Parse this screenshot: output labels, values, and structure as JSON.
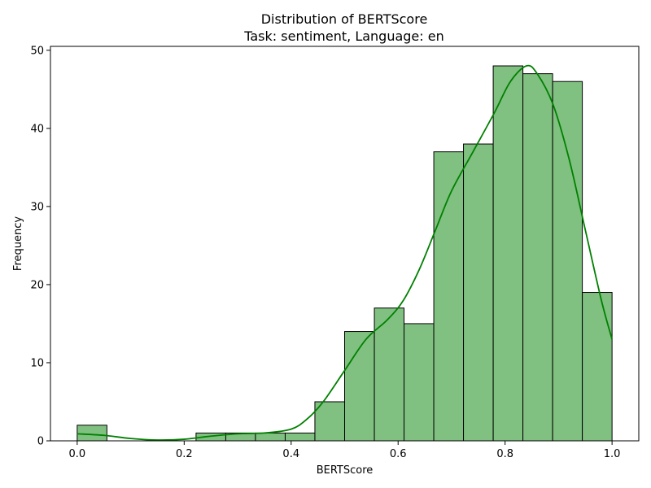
{
  "chart_data": {
    "type": "bar",
    "title": "Distribution of BERTScore",
    "subtitle": "Task: sentiment, Language: en",
    "xlabel": "BERTScore",
    "ylabel": "Frequency",
    "xlim": [
      -0.05,
      1.05
    ],
    "ylim": [
      0,
      50.5
    ],
    "xticks": [
      0.0,
      0.2,
      0.4,
      0.6,
      0.8,
      1.0
    ],
    "xtick_labels": [
      "0.0",
      "0.2",
      "0.4",
      "0.6",
      "0.8",
      "1.0"
    ],
    "yticks": [
      0,
      10,
      20,
      30,
      40,
      50
    ],
    "ytick_labels": [
      "0",
      "10",
      "20",
      "30",
      "40",
      "50"
    ],
    "grid": false,
    "bar_color": "#80c080",
    "bar_edge_color": "#000000",
    "bins": [
      {
        "x0": 0.0,
        "x1": 0.0556,
        "count": 2
      },
      {
        "x0": 0.0556,
        "x1": 0.1111,
        "count": 0
      },
      {
        "x0": 0.1111,
        "x1": 0.1667,
        "count": 0
      },
      {
        "x0": 0.1667,
        "x1": 0.2222,
        "count": 0
      },
      {
        "x0": 0.2222,
        "x1": 0.2778,
        "count": 1
      },
      {
        "x0": 0.2778,
        "x1": 0.3333,
        "count": 1
      },
      {
        "x0": 0.3333,
        "x1": 0.3889,
        "count": 1
      },
      {
        "x0": 0.3889,
        "x1": 0.4444,
        "count": 1
      },
      {
        "x0": 0.4444,
        "x1": 0.5,
        "count": 5
      },
      {
        "x0": 0.5,
        "x1": 0.5556,
        "count": 14
      },
      {
        "x0": 0.5556,
        "x1": 0.6111,
        "count": 17
      },
      {
        "x0": 0.6111,
        "x1": 0.6667,
        "count": 15
      },
      {
        "x0": 0.6667,
        "x1": 0.7222,
        "count": 37
      },
      {
        "x0": 0.7222,
        "x1": 0.7778,
        "count": 38
      },
      {
        "x0": 0.7778,
        "x1": 0.8333,
        "count": 48
      },
      {
        "x0": 0.8333,
        "x1": 0.8889,
        "count": 47
      },
      {
        "x0": 0.8889,
        "x1": 0.9444,
        "count": 46
      },
      {
        "x0": 0.9444,
        "x1": 1.0,
        "count": 19
      }
    ],
    "kde": {
      "color": "#008000",
      "points": [
        [
          0.0,
          0.9
        ],
        [
          0.05,
          0.7
        ],
        [
          0.1,
          0.3
        ],
        [
          0.15,
          0.1
        ],
        [
          0.2,
          0.2
        ],
        [
          0.25,
          0.6
        ],
        [
          0.3,
          0.9
        ],
        [
          0.35,
          1.0
        ],
        [
          0.4,
          1.5
        ],
        [
          0.43,
          2.8
        ],
        [
          0.46,
          5.0
        ],
        [
          0.5,
          9.0
        ],
        [
          0.54,
          13.0
        ],
        [
          0.58,
          15.5
        ],
        [
          0.61,
          18.0
        ],
        [
          0.64,
          22.0
        ],
        [
          0.67,
          27.0
        ],
        [
          0.7,
          32.0
        ],
        [
          0.74,
          37.0
        ],
        [
          0.78,
          42.0
        ],
        [
          0.81,
          46.0
        ],
        [
          0.84,
          48.0
        ],
        [
          0.86,
          47.0
        ],
        [
          0.89,
          43.0
        ],
        [
          0.92,
          36.0
        ],
        [
          0.95,
          27.0
        ],
        [
          0.98,
          18.0
        ],
        [
          1.0,
          13.0
        ]
      ]
    }
  }
}
